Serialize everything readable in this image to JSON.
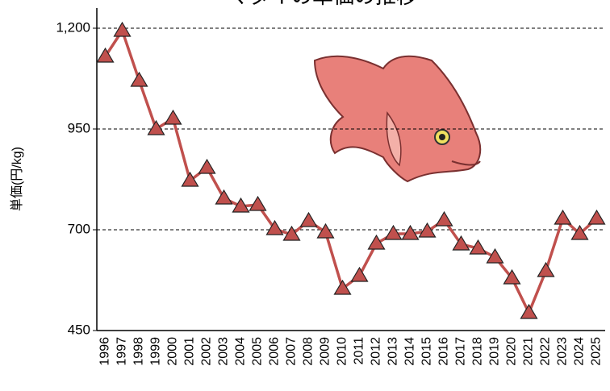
{
  "chart_data": {
    "type": "line",
    "title": "マダイの単価の推移",
    "y_label": "単価(円/kg)",
    "categories": [
      "1996",
      "1997",
      "1998",
      "1999",
      "2000",
      "2001",
      "2002",
      "2003",
      "2004",
      "2005",
      "2006",
      "2007",
      "2008",
      "2009",
      "2010",
      "2011",
      "2012",
      "2013",
      "2014",
      "2015",
      "2016",
      "2017",
      "2018",
      "2019",
      "2020",
      "2021",
      "2022",
      "2023",
      "2024",
      "2025"
    ],
    "series": [
      {
        "name": "単価",
        "color": "#c0504d",
        "values": [
          1130,
          1194,
          1070,
          950,
          976,
          822,
          854,
          778,
          758,
          762,
          702,
          688,
          722,
          694,
          554,
          586,
          666,
          690,
          690,
          696,
          724,
          664,
          654,
          632,
          580,
          494,
          598,
          728,
          690,
          728
        ]
      }
    ],
    "ylim": [
      450,
      1200
    ],
    "yticks": [
      450,
      700,
      950,
      {
        "value": 1200,
        "label": "1,200"
      }
    ],
    "grid": true
  }
}
